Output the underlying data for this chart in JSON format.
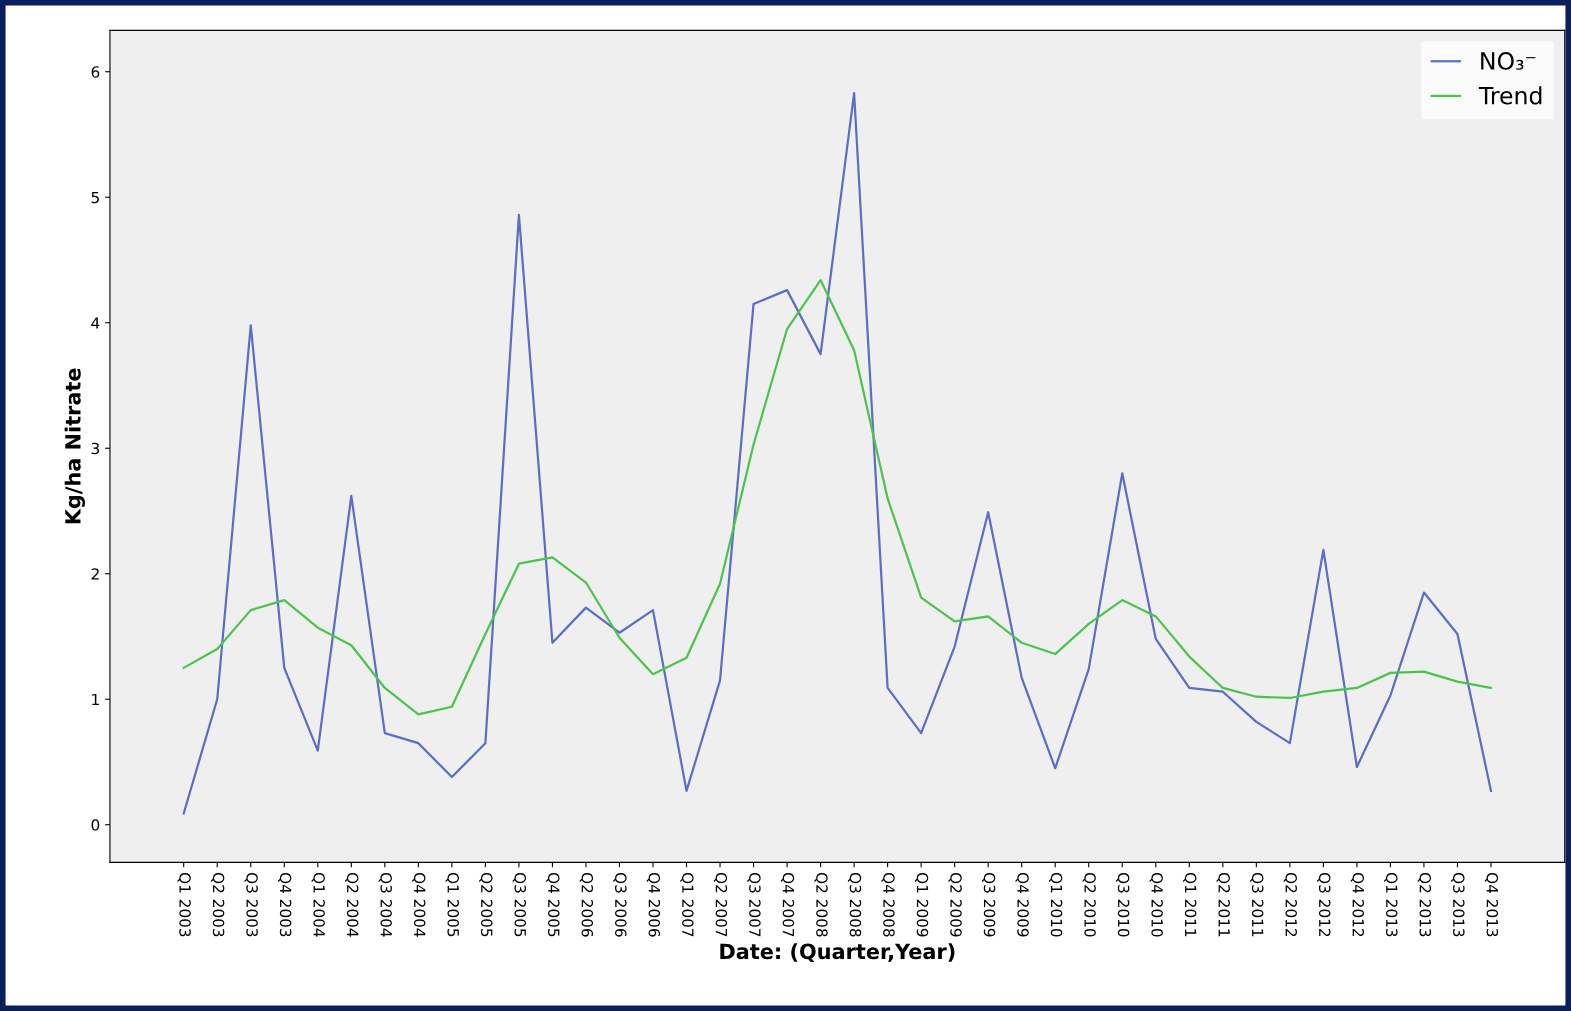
{
  "chart_data": {
    "type": "line",
    "xlabel": "Date: (Quarter,Year)",
    "ylabel": "Kg/ha Nitrate",
    "categories": [
      "Q1 2003",
      "Q2 2003",
      "Q3 2003",
      "Q4 2003",
      "Q1 2004",
      "Q2 2004",
      "Q3 2004",
      "Q4 2004",
      "Q1 2005",
      "Q2 2005",
      "Q3 2005",
      "Q4 2005",
      "Q2 2006",
      "Q3 2006",
      "Q4 2006",
      "Q1 2007",
      "Q2 2007",
      "Q3 2007",
      "Q4 2007",
      "Q2 2008",
      "Q3 2008",
      "Q4 2008",
      "Q1 2009",
      "Q2 2009",
      "Q3 2009",
      "Q4 2009",
      "Q1 2010",
      "Q2 2010",
      "Q3 2010",
      "Q4 2010",
      "Q1 2011",
      "Q2 2011",
      "Q3 2011",
      "Q2 2012",
      "Q3 2012",
      "Q4 2012",
      "Q1 2013",
      "Q2 2013",
      "Q3 2013",
      "Q4 2013"
    ],
    "series": [
      {
        "name": "NO₃⁻",
        "color": "#5a6ec4",
        "values": [
          0.09,
          1.0,
          3.98,
          1.25,
          0.59,
          2.62,
          0.73,
          0.65,
          0.38,
          0.65,
          4.86,
          1.45,
          1.73,
          1.53,
          1.71,
          0.27,
          1.15,
          4.15,
          4.26,
          3.75,
          5.83,
          1.09,
          0.73,
          1.42,
          2.49,
          1.17,
          0.45,
          1.24,
          2.8,
          1.48,
          1.09,
          1.06,
          0.82,
          0.65,
          2.19,
          0.46,
          1.03,
          1.85,
          1.52,
          0.27
        ]
      },
      {
        "name": "Trend",
        "color": "#4cc44c",
        "values": [
          1.25,
          1.4,
          1.71,
          1.79,
          1.57,
          1.43,
          1.09,
          0.88,
          0.94,
          1.52,
          2.08,
          2.13,
          1.93,
          1.49,
          1.2,
          1.33,
          1.92,
          3.03,
          3.95,
          4.34,
          3.78,
          2.6,
          1.81,
          1.62,
          1.66,
          1.45,
          1.36,
          1.6,
          1.79,
          1.66,
          1.34,
          1.09,
          1.02,
          1.01,
          1.06,
          1.09,
          1.21,
          1.22,
          1.14,
          1.09
        ]
      }
    ],
    "ylim": [
      -0.3,
      6.33
    ],
    "yticks": [
      0,
      1,
      2,
      3,
      4,
      5,
      6
    ],
    "grid": false,
    "legend": "top right",
    "marker": "none",
    "line_style": "solid"
  }
}
